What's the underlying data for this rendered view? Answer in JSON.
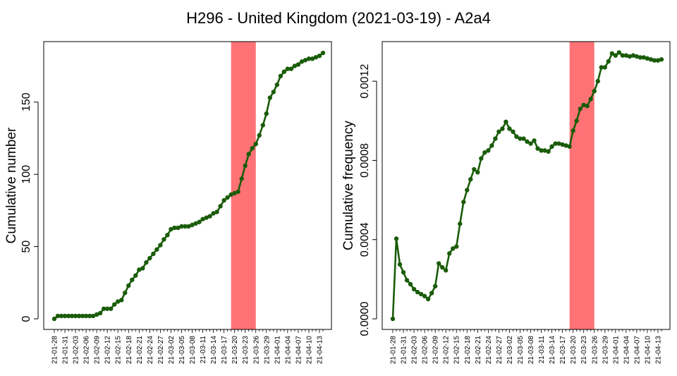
{
  "figure": {
    "title": "H296 - United Kingdom (2021-03-19) - A2a4"
  },
  "colors": {
    "line": "#1a5c0a",
    "highlight": "#ff7377",
    "axis": "#000000"
  },
  "chart_data": [
    {
      "type": "line",
      "title": "",
      "xlabel": "",
      "ylabel": "Cumulative number",
      "ylim": [
        0,
        185
      ],
      "yticks": [
        0,
        50,
        100,
        150
      ],
      "ytick_labels": [
        "0",
        "50",
        "100",
        "150"
      ],
      "x_dates": [
        "21-01-28",
        "21-01-29",
        "21-01-30",
        "21-01-31",
        "21-02-01",
        "21-02-02",
        "21-02-03",
        "21-02-04",
        "21-02-05",
        "21-02-06",
        "21-02-07",
        "21-02-08",
        "21-02-09",
        "21-02-10",
        "21-02-11",
        "21-02-12",
        "21-02-13",
        "21-02-14",
        "21-02-15",
        "21-02-16",
        "21-02-17",
        "21-02-18",
        "21-02-19",
        "21-02-20",
        "21-02-21",
        "21-02-22",
        "21-02-23",
        "21-02-24",
        "21-02-25",
        "21-02-26",
        "21-02-27",
        "21-02-28",
        "21-03-01",
        "21-03-02",
        "21-03-03",
        "21-03-04",
        "21-03-05",
        "21-03-06",
        "21-03-07",
        "21-03-08",
        "21-03-09",
        "21-03-10",
        "21-03-11",
        "21-03-12",
        "21-03-13",
        "21-03-14",
        "21-03-15",
        "21-03-16",
        "21-03-17",
        "21-03-18",
        "21-03-19",
        "21-03-20",
        "21-03-21",
        "21-03-22",
        "21-03-23",
        "21-03-24",
        "21-03-25",
        "21-03-26",
        "21-03-27",
        "21-03-28",
        "21-03-29",
        "21-03-30",
        "21-03-31",
        "21-04-01",
        "21-04-02",
        "21-04-03",
        "21-04-04",
        "21-04-05",
        "21-04-06",
        "21-04-07",
        "21-04-08",
        "21-04-09",
        "21-04-10",
        "21-04-11",
        "21-04-12",
        "21-04-13",
        "21-04-14"
      ],
      "xtick_labels": [
        "21-01-28",
        "21-01-31",
        "21-02-03",
        "21-02-06",
        "21-02-09",
        "21-02-12",
        "21-02-15",
        "21-02-18",
        "21-02-21",
        "21-02-24",
        "21-02-27",
        "21-03-02",
        "21-03-05",
        "21-03-08",
        "21-03-11",
        "21-03-14",
        "21-03-17",
        "21-03-20",
        "21-03-23",
        "21-03-26",
        "21-03-29",
        "21-04-01",
        "21-04-04",
        "21-04-07",
        "21-04-10",
        "21-04-13"
      ],
      "highlight": {
        "start": "21-03-19",
        "end": "21-03-26"
      },
      "series": [
        {
          "values": [
            0,
            2,
            2,
            2,
            2,
            2,
            2,
            2,
            2,
            2,
            2,
            2,
            3,
            4,
            7,
            7,
            7,
            10,
            12,
            13,
            18,
            23,
            27,
            30,
            34,
            35,
            39,
            42,
            45,
            48,
            51,
            55,
            58,
            62,
            63,
            63,
            64,
            64,
            64,
            65,
            66,
            67,
            69,
            70,
            71,
            73,
            74,
            78,
            82,
            84,
            86,
            87,
            88,
            97,
            106,
            114,
            118,
            121,
            127,
            134,
            142,
            153,
            157,
            162,
            168,
            171,
            173,
            173,
            175,
            176,
            178,
            179,
            180,
            180,
            181,
            182,
            184
          ]
        }
      ],
      "grid": false
    },
    {
      "type": "line",
      "title": "",
      "xlabel": "",
      "ylabel": "Cumulative frequency",
      "ylim": [
        0,
        0.00135
      ],
      "yticks": [
        0,
        0.0004,
        0.0008,
        0.0012
      ],
      "ytick_labels": [
        "0.0000",
        "0.0004",
        "0.0008",
        "0.0012"
      ],
      "x_dates": [
        "21-01-28",
        "21-01-29",
        "21-01-30",
        "21-01-31",
        "21-02-01",
        "21-02-02",
        "21-02-03",
        "21-02-04",
        "21-02-05",
        "21-02-06",
        "21-02-07",
        "21-02-08",
        "21-02-09",
        "21-02-10",
        "21-02-11",
        "21-02-12",
        "21-02-13",
        "21-02-14",
        "21-02-15",
        "21-02-16",
        "21-02-17",
        "21-02-18",
        "21-02-19",
        "21-02-20",
        "21-02-21",
        "21-02-22",
        "21-02-23",
        "21-02-24",
        "21-02-25",
        "21-02-26",
        "21-02-27",
        "21-02-28",
        "21-03-01",
        "21-03-02",
        "21-03-03",
        "21-03-04",
        "21-03-05",
        "21-03-06",
        "21-03-07",
        "21-03-08",
        "21-03-09",
        "21-03-10",
        "21-03-11",
        "21-03-12",
        "21-03-13",
        "21-03-14",
        "21-03-15",
        "21-03-16",
        "21-03-17",
        "21-03-18",
        "21-03-19",
        "21-03-20",
        "21-03-21",
        "21-03-22",
        "21-03-23",
        "21-03-24",
        "21-03-25",
        "21-03-26",
        "21-03-27",
        "21-03-28",
        "21-03-29",
        "21-03-30",
        "21-03-31",
        "21-04-01",
        "21-04-02",
        "21-04-03",
        "21-04-04",
        "21-04-05",
        "21-04-06",
        "21-04-07",
        "21-04-08",
        "21-04-09",
        "21-04-10",
        "21-04-11",
        "21-04-12",
        "21-04-13",
        "21-04-14"
      ],
      "xtick_labels": [
        "21-01-28",
        "21-01-31",
        "21-02-03",
        "21-02-06",
        "21-02-09",
        "21-02-12",
        "21-02-15",
        "21-02-18",
        "21-02-21",
        "21-02-24",
        "21-02-27",
        "21-03-02",
        "21-03-05",
        "21-03-08",
        "21-03-11",
        "21-03-14",
        "21-03-17",
        "21-03-20",
        "21-03-23",
        "21-03-26",
        "21-03-29",
        "21-04-01",
        "21-04-04",
        "21-04-07",
        "21-04-10",
        "21-04-13"
      ],
      "highlight": {
        "start": "21-03-19",
        "end": "21-03-26"
      },
      "series": [
        {
          "values": [
            0,
            0.000405,
            0.000275,
            0.000235,
            0.000195,
            0.000175,
            0.00015,
            0.000135,
            0.000125,
            0.000115,
            0.0001,
            0.00013,
            0.000165,
            0.00028,
            0.00026,
            0.000245,
            0.00033,
            0.000355,
            0.000365,
            0.00048,
            0.00059,
            0.00065,
            0.000705,
            0.000755,
            0.00074,
            0.00081,
            0.00084,
            0.00085,
            0.000875,
            0.00091,
            0.000945,
            0.00096,
            0.000995,
            0.00096,
            0.000945,
            0.00092,
            0.00091,
            0.00091,
            0.000895,
            0.000885,
            0.0009,
            0.00086,
            0.00085,
            0.00085,
            0.000845,
            0.00087,
            0.000885,
            0.000885,
            0.00088,
            0.000875,
            0.00087,
            0.00095,
            0.001,
            0.00106,
            0.00108,
            0.001075,
            0.00111,
            0.00115,
            0.0012,
            0.00127,
            0.00127,
            0.0013,
            0.00134,
            0.00133,
            0.001345,
            0.00133,
            0.00133,
            0.001325,
            0.00133,
            0.001325,
            0.00132,
            0.00132,
            0.001315,
            0.00131,
            0.001305,
            0.001305,
            0.00131
          ]
        }
      ],
      "grid": false
    }
  ]
}
